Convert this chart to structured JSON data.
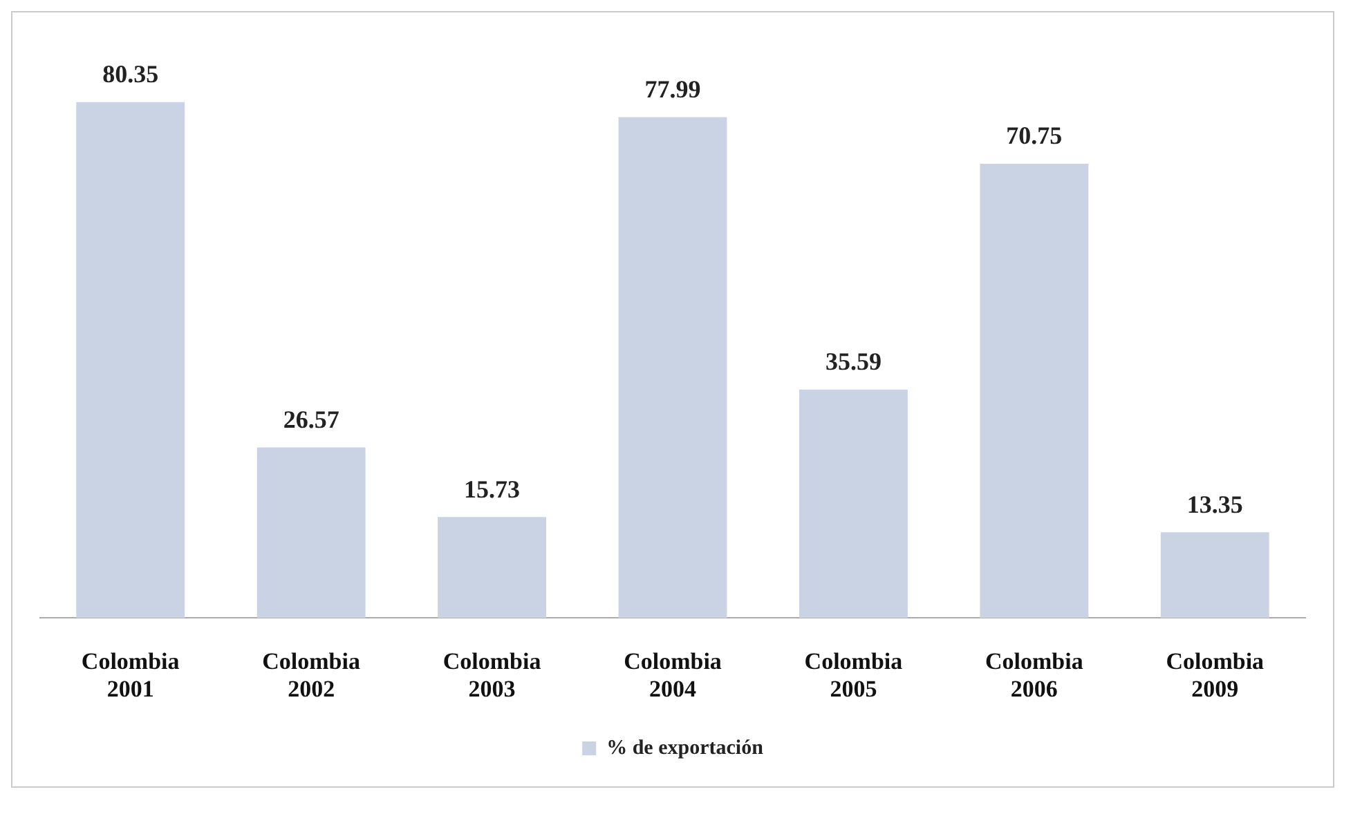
{
  "chart_data": {
    "type": "bar",
    "categories": [
      "Colombia 2001",
      "Colombia 2002",
      "Colombia 2003",
      "Colombia 2004",
      "Colombia 2005",
      "Colombia 2006",
      "Colombia 2009"
    ],
    "series": [
      {
        "name": "% de exportación",
        "color": "#c9d3e3",
        "values": [
          80.35,
          26.57,
          15.73,
          77.99,
          35.59,
          70.75,
          13.35
        ]
      }
    ],
    "data_labels": true,
    "legend": "bottom",
    "grid": false,
    "tick_labels": "x"
  }
}
